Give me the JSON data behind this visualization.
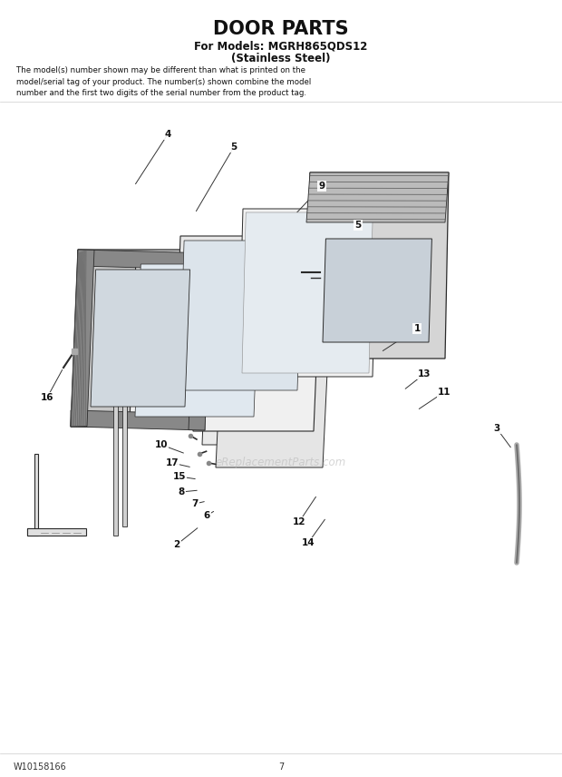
{
  "title": "DOOR PARTS",
  "subtitle1": "For Models: MGRH865QDS12",
  "subtitle2": "(Stainless Steel)",
  "description": "The model(s) number shown may be different than what is printed on the\nmodel/serial tag of your product. The number(s) shown combine the model\nnumber and the first two digits of the serial number from the product tag.",
  "footer_left": "W10158166",
  "footer_center": "7",
  "bg_color": "#ffffff",
  "line_color": "#2a2a2a",
  "watermark": "eReplacementParts.com"
}
